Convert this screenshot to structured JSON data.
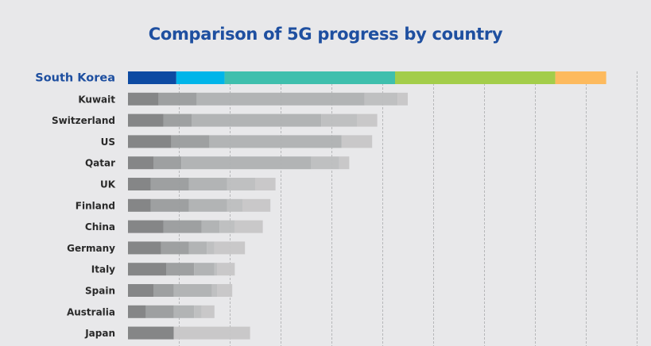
{
  "chart_data": {
    "type": "bar",
    "stacked": true,
    "orientation": "horizontal",
    "title": "Comparison of 5G progress by country",
    "xlabel": "",
    "ylabel": "",
    "x_tick_labels_shown": false,
    "xlim": [
      0,
      100
    ],
    "grid": "vertical dashed",
    "legend": "none",
    "highlight_category": "South Korea",
    "highlight_colors": [
      "#0d4aa2",
      "#00b5e9",
      "#3fbfad",
      "#a3cd4a",
      "#fdba5e"
    ],
    "muted_colors": [
      "#7f8182",
      "#9a9c9d",
      "#afb1b2",
      "#bdbebf",
      "#c7c6c7"
    ],
    "categories": [
      "South Korea",
      "Kuwait",
      "Switzerland",
      "US",
      "Qatar",
      "UK",
      "Finland",
      "China",
      "Germany",
      "Italy",
      "Spain",
      "Australia",
      "Japan"
    ],
    "series": [
      {
        "name": "segment-1",
        "values": [
          9.5,
          6,
          7,
          8.5,
          5,
          4.5,
          4.5,
          7,
          6.5,
          7.5,
          5,
          3.5,
          9
        ]
      },
      {
        "name": "segment-2",
        "values": [
          9.5,
          7.5,
          5.5,
          7.5,
          5.5,
          7.5,
          7.5,
          7.5,
          5.5,
          5.5,
          4,
          5.5,
          0
        ]
      },
      {
        "name": "segment-3",
        "values": [
          33.5,
          33,
          25.5,
          26,
          25.5,
          7.5,
          7.5,
          3.5,
          3.5,
          4,
          7.5,
          4,
          0
        ]
      },
      {
        "name": "segment-4",
        "values": [
          31.5,
          6.5,
          7,
          0,
          5.5,
          5.5,
          3,
          3,
          1.5,
          0.5,
          1,
          1.5,
          0
        ]
      },
      {
        "name": "segment-5",
        "values": [
          10,
          2,
          4,
          6,
          2,
          4,
          5.5,
          5.5,
          6,
          3.5,
          3,
          2.5,
          15
        ]
      }
    ]
  }
}
